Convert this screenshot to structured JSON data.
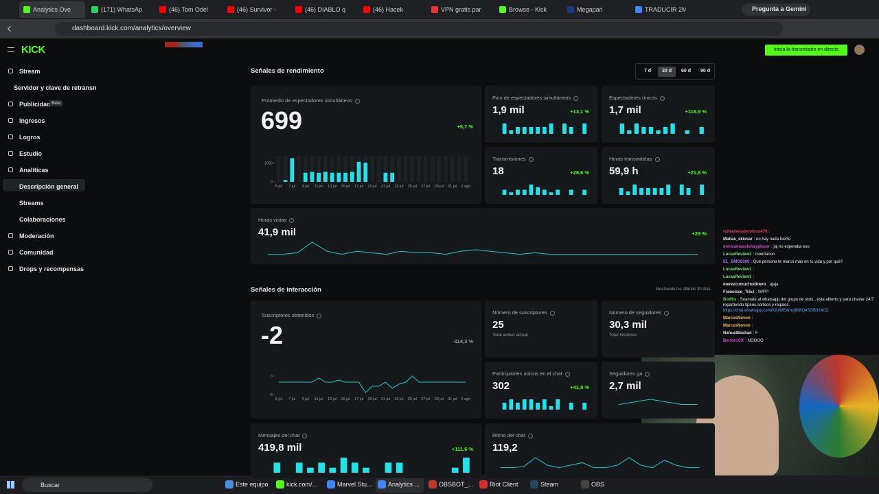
{
  "browser": {
    "tabs": [
      "Analytics Ove",
      "(171) WhatsAp",
      "(46) Tom Odel",
      "(46) Survivor -",
      "(46) DIABLO q",
      "(46) Hacek",
      "VPN gratis par",
      "Browse - Kick",
      "Megapari",
      "TRADUCIR 2M"
    ],
    "gemini": "Pregunta a Gemini",
    "url": "dashboard.kick.com/analytics/overview"
  },
  "sidebar": {
    "logo": "KICK",
    "items": [
      {
        "label": "Stream"
      },
      {
        "label": "Servidor y clave de retransn"
      },
      {
        "label": "Publicidad",
        "badge": "Beta"
      },
      {
        "label": "Ingresos"
      },
      {
        "label": "Logros"
      },
      {
        "label": "Estudio"
      },
      {
        "label": "Analíticas"
      },
      {
        "label": "Descripción general"
      },
      {
        "label": "Streams"
      },
      {
        "label": "Colaboraciones"
      },
      {
        "label": "Moderación"
      },
      {
        "label": "Comunidad"
      },
      {
        "label": "Drops y recompensas"
      }
    ]
  },
  "header": {
    "go_live": "Inicia la transmisión en directo"
  },
  "performance": {
    "title": "Señales de rendimiento",
    "ranges": [
      "7 d",
      "30 d",
      "60 d",
      "90 d"
    ],
    "selected_range_index": 1,
    "cards": [
      {
        "title": "Promedio de espectadores simultáneos",
        "value": "699",
        "change": "+5,7 %",
        "chart": {
          "type": "bar",
          "categories": [
            "5 jul",
            null,
            "7 jul",
            null,
            "9 jul",
            null,
            "11 jul",
            null,
            "13 jul",
            null,
            "15 jul",
            null,
            "17 jul",
            null,
            "19 jul",
            null,
            "21 jul",
            null,
            "23 jul",
            null,
            "25 jul",
            null,
            "27 jul",
            null,
            "29 jul",
            null,
            "31 jul",
            null,
            "2 ago"
          ],
          "values": [
            0,
            100,
            1300,
            0,
            500,
            550,
            500,
            550,
            500,
            500,
            500,
            550,
            1100,
            1050,
            0,
            0,
            500,
            500,
            0,
            0,
            0,
            0,
            0,
            0,
            0,
            0,
            0,
            0,
            0
          ],
          "ylim": [
            0,
            1400
          ],
          "yticks": [
            0,
            1050
          ]
        }
      },
      {
        "title": "Pico de espectadores simultáneos",
        "value": "1,9 mil",
        "change": "+13,1 %",
        "chart": {
          "type": "bar",
          "values": [
            0,
            3,
            1,
            2,
            2,
            2,
            2,
            2,
            3,
            0,
            3,
            2,
            0,
            3
          ]
        }
      },
      {
        "title": "Espectadores únicos",
        "value": "1,7 mil",
        "change": "+118,9 %",
        "chart": {
          "type": "bar",
          "values": [
            0,
            3,
            1,
            3,
            2,
            2,
            1,
            2,
            3,
            0,
            1,
            0,
            2
          ]
        }
      },
      {
        "title": "Transmisiones",
        "value": "18",
        "change": "+28,6 %",
        "chart": {
          "type": "bar",
          "values": [
            0,
            2,
            1,
            2,
            2,
            4,
            3,
            2,
            1,
            2,
            0,
            2,
            0,
            2
          ]
        }
      },
      {
        "title": "Horas transmitidas",
        "value": "59,9 h",
        "change": "+21,8 %",
        "chart": {
          "type": "bar",
          "values": [
            0,
            2,
            1,
            3,
            2,
            2,
            2,
            2,
            3,
            0,
            3,
            2,
            0,
            3
          ]
        }
      },
      {
        "title": "Horas vistas",
        "value": "41,9 mil",
        "change": "+29 %",
        "chart": {
          "type": "line",
          "values": [
            1,
            1,
            1.5,
            5,
            2,
            1,
            2,
            1.5,
            1,
            2,
            1.5,
            1.5,
            1,
            2,
            2.5,
            2,
            1.5,
            1,
            1.5,
            1,
            1,
            1,
            1,
            1,
            1,
            1,
            1,
            1,
            1,
            1
          ]
        }
      }
    ]
  },
  "interaction": {
    "title": "Señales de interacción",
    "note": "Mostrando los últimos 30 días",
    "cards": [
      {
        "title": "Suscriptores obtenidos",
        "value": "-2",
        "change": "-114,3 %",
        "chart": {
          "type": "line",
          "categories": [
            "5 jul",
            null,
            "7 jul",
            null,
            "9 jul",
            null,
            "11 jul",
            null,
            "13 jul",
            null,
            "15 jul",
            null,
            "17 jul",
            null,
            "19 jul",
            null,
            "21 jul",
            null,
            "23 jul",
            null,
            "25 jul",
            null,
            "27 jul",
            null,
            "29 jul",
            null,
            "31 jul",
            null,
            "2 ago"
          ],
          "values": [
            0,
            0,
            0,
            0,
            0,
            0,
            2,
            0,
            0,
            1,
            0,
            0,
            0,
            -5,
            -2,
            -2,
            0,
            -3,
            -1,
            0,
            3,
            0,
            0,
            0,
            0,
            0,
            0,
            0,
            0
          ],
          "ylim": [
            -6,
            3
          ],
          "yticks": [
            3,
            -6
          ]
        }
      },
      {
        "title": "Número de suscriptores",
        "value": "25",
        "sub": "Total activo actual"
      },
      {
        "title": "Número de seguidores",
        "value": "30,3 mil",
        "sub": "Total histórico"
      },
      {
        "title": "Participantes únicos en el chat",
        "value": "302",
        "change": "+41,8 %",
        "chart": {
          "type": "bar",
          "values": [
            0,
            2,
            3,
            2,
            3,
            3,
            2,
            3,
            1,
            3,
            0,
            2,
            0,
            2
          ]
        }
      },
      {
        "title": "Seguidores ga",
        "value": "2,7 mil",
        "chart": {
          "type": "line",
          "values": [
            1,
            1.5,
            2,
            1.5,
            1,
            1
          ]
        }
      },
      {
        "title": "Mensajes del chat",
        "value": "419,8 mil",
        "change": "+111,6 %",
        "chart": {
          "type": "bar",
          "values": [
            0,
            2,
            0,
            2,
            1,
            2,
            1,
            3,
            2,
            1,
            0,
            2,
            2,
            0,
            0,
            0,
            0,
            1,
            3
          ]
        }
      },
      {
        "title": "Ritmo del chat",
        "value": "119,2",
        "chart": {
          "type": "line",
          "values": [
            1,
            1,
            1.2,
            3,
            1.5,
            1,
            1.5,
            2,
            1,
            1,
            1.5,
            3,
            1.5,
            1,
            2.5,
            1.5,
            1,
            1
          ]
        }
      }
    ]
  },
  "chat": {
    "messages": [
      {
        "user": "rollerdenaderoloco479",
        "text": ":",
        "color": "#e0406a"
      },
      {
        "user": "Matias_skivssr",
        "text": ": no hay nada fuerte",
        "color": "#e8e8e8"
      },
      {
        "user": "ennicamasolohayplacer",
        "text": ": jaj no esperaba eso",
        "color": "#d84ad8"
      },
      {
        "user": "LucasReview1",
        "text": ": moertanoo",
        "color": "#7de27d"
      },
      {
        "user": "EL_BMO6300",
        "text": ": Qué persona te marcó más en tu vida y por qué?",
        "color": "#b36cff"
      },
      {
        "user": "LucasReview1",
        "text": ":",
        "color": "#7de27d"
      },
      {
        "user": "LucasReview1",
        "text": ":",
        "color": "#7de27d"
      },
      {
        "user": "merezcomuchodinero",
        "text": ": ajaja",
        "color": "#e8e8e8"
      },
      {
        "user": "Francisco_Trisz",
        "text": ": !WPP",
        "color": "#e8e8e8"
      },
      {
        "user": "BotRix",
        "text": ": Suamate al whatsapp del grupo de slots , esta abierto y para charlar 24/7 repartiendo tipeos,sorteos y regalos.",
        "color": "#58d858",
        "link": "https://chat.whatsapp.com/KIUWEXmcj908Q4SGB314CC"
      },
      {
        "user": "MarcosNovon",
        "text": ":",
        "color": "#f0c060"
      },
      {
        "user": "MarcosNovon",
        "text": ":",
        "color": "#f0c060"
      },
      {
        "user": "NahuelBestian",
        "text": ": F",
        "color": "#e8e8e8"
      },
      {
        "user": "BertoroCK",
        "text": ": NOOOO",
        "color": "#d84ad8"
      }
    ]
  },
  "taskbar": {
    "search": "Buscar",
    "apps": [
      "Este equipo",
      "kick.com/...",
      "Marvel Stu...",
      "Analytics ...",
      "OBSBOT_...",
      "Riot Client",
      "Steam",
      "OBS"
    ]
  }
}
